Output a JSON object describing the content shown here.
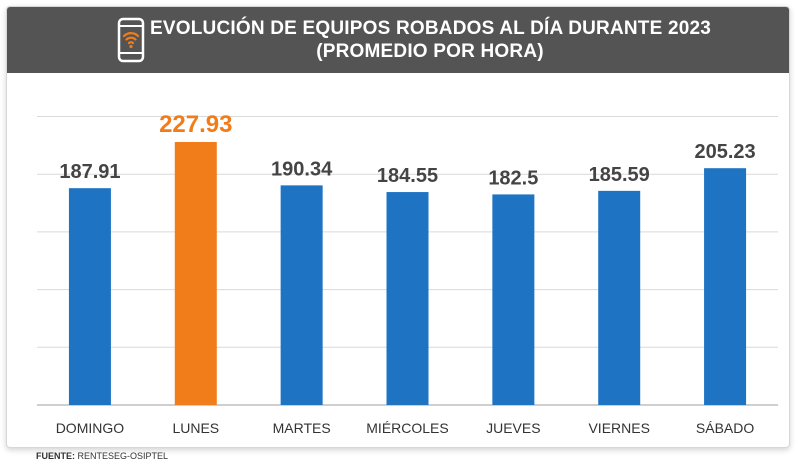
{
  "header": {
    "title_line1": "EVOLUCIÓN DE EQUIPOS ROBADOS AL DÍA DURANTE 2023",
    "title_line2": "(PROMEDIO POR HORA)",
    "icon": "smartphone-wifi-icon"
  },
  "source": {
    "label": "FUENTE:",
    "text": "RENTESEG-OSIPTEL"
  },
  "colors": {
    "header_bg": "#545454",
    "bar": "#1e73c2",
    "highlight": "#f07d1a",
    "label": "#444444"
  },
  "chart_data": {
    "type": "bar",
    "title": "EVOLUCIÓN DE EQUIPOS ROBADOS AL DÍA DURANTE 2023 (PROMEDIO POR HORA)",
    "categories": [
      "DOMINGO",
      "LUNES",
      "MARTES",
      "MIÉRCOLES",
      "JUEVES",
      "VIERNES",
      "SÁBADO"
    ],
    "values": [
      187.91,
      227.93,
      190.34,
      184.55,
      182.5,
      185.59,
      205.23
    ],
    "value_labels": [
      "187.91",
      "227.93",
      "190.34",
      "184.55",
      "182.5",
      "185.59",
      "205.23"
    ],
    "highlight_index": 1,
    "ylim": [
      0,
      250
    ],
    "grid": true,
    "xlabel": "",
    "ylabel": ""
  }
}
